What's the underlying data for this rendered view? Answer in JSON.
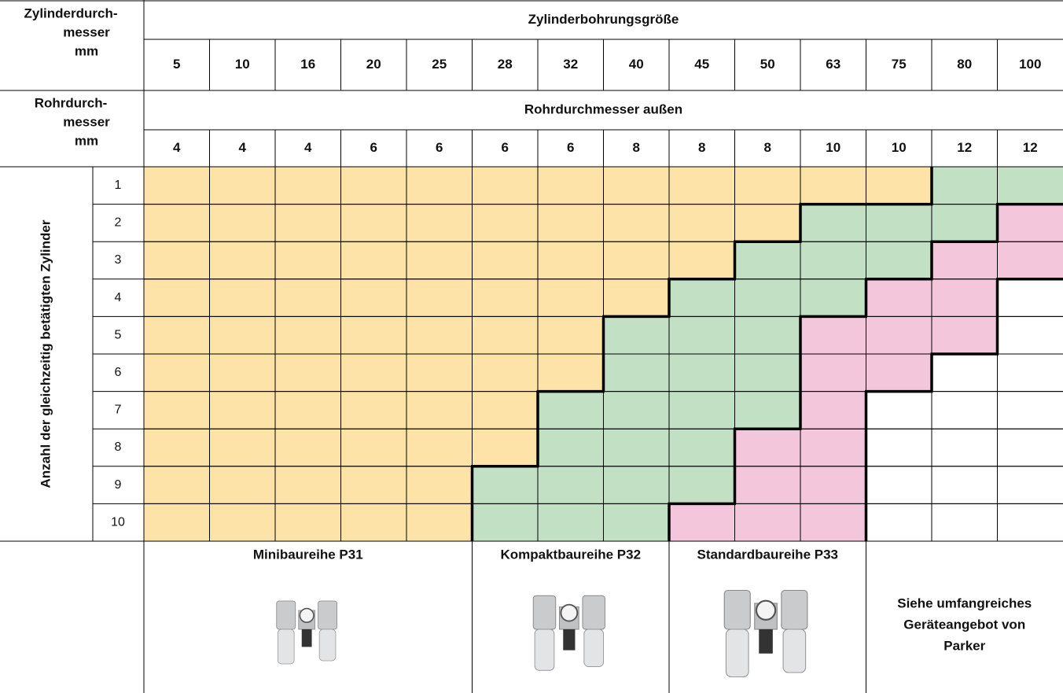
{
  "table": {
    "header1": {
      "label_lines": [
        "Zylinderdurch-",
        "messer",
        "mm"
      ],
      "title": "Zylinderbohrungsgröße",
      "values": [
        "5",
        "10",
        "16",
        "20",
        "25",
        "28",
        "32",
        "40",
        "45",
        "50",
        "63",
        "75",
        "80",
        "100"
      ]
    },
    "header2": {
      "label_lines": [
        "Rohrdurch-",
        "messer",
        "mm"
      ],
      "title": "Rohrdurchmesser außen",
      "values": [
        "4",
        "4",
        "4",
        "6",
        "6",
        "6",
        "6",
        "8",
        "8",
        "8",
        "10",
        "10",
        "12",
        "12"
      ]
    },
    "row_axis_label": "Anzahl der gleichzeitig betätigten Zylinder",
    "rows": [
      {
        "label": "1",
        "colors": [
          "#fde3a7",
          "#fde3a7",
          "#fde3a7",
          "#fde3a7",
          "#fde3a7",
          "#fde3a7",
          "#fde3a7",
          "#fde3a7",
          "#fde3a7",
          "#fde3a7",
          "#fde3a7",
          "#fde3a7",
          "#c2e0c3",
          "#c2e0c3"
        ]
      },
      {
        "label": "2",
        "colors": [
          "#fde3a7",
          "#fde3a7",
          "#fde3a7",
          "#fde3a7",
          "#fde3a7",
          "#fde3a7",
          "#fde3a7",
          "#fde3a7",
          "#fde3a7",
          "#fde3a7",
          "#c2e0c3",
          "#c2e0c3",
          "#c2e0c3",
          "#f4c6dc"
        ]
      },
      {
        "label": "3",
        "colors": [
          "#fde3a7",
          "#fde3a7",
          "#fde3a7",
          "#fde3a7",
          "#fde3a7",
          "#fde3a7",
          "#fde3a7",
          "#fde3a7",
          "#fde3a7",
          "#c2e0c3",
          "#c2e0c3",
          "#c2e0c3",
          "#f4c6dc",
          "#f4c6dc"
        ]
      },
      {
        "label": "4",
        "colors": [
          "#fde3a7",
          "#fde3a7",
          "#fde3a7",
          "#fde3a7",
          "#fde3a7",
          "#fde3a7",
          "#fde3a7",
          "#fde3a7",
          "#c2e0c3",
          "#c2e0c3",
          "#c2e0c3",
          "#f4c6dc",
          "#f4c6dc",
          "#ffffff"
        ]
      },
      {
        "label": "5",
        "colors": [
          "#fde3a7",
          "#fde3a7",
          "#fde3a7",
          "#fde3a7",
          "#fde3a7",
          "#fde3a7",
          "#fde3a7",
          "#c2e0c3",
          "#c2e0c3",
          "#c2e0c3",
          "#f4c6dc",
          "#f4c6dc",
          "#f4c6dc",
          "#ffffff"
        ]
      },
      {
        "label": "6",
        "colors": [
          "#fde3a7",
          "#fde3a7",
          "#fde3a7",
          "#fde3a7",
          "#fde3a7",
          "#fde3a7",
          "#fde3a7",
          "#c2e0c3",
          "#c2e0c3",
          "#c2e0c3",
          "#f4c6dc",
          "#f4c6dc",
          "#ffffff",
          "#ffffff"
        ]
      },
      {
        "label": "7",
        "colors": [
          "#fde3a7",
          "#fde3a7",
          "#fde3a7",
          "#fde3a7",
          "#fde3a7",
          "#fde3a7",
          "#c2e0c3",
          "#c2e0c3",
          "#c2e0c3",
          "#c2e0c3",
          "#f4c6dc",
          "#ffffff",
          "#ffffff",
          "#ffffff"
        ]
      },
      {
        "label": "8",
        "colors": [
          "#fde3a7",
          "#fde3a7",
          "#fde3a7",
          "#fde3a7",
          "#fde3a7",
          "#fde3a7",
          "#c2e0c3",
          "#c2e0c3",
          "#c2e0c3",
          "#f4c6dc",
          "#f4c6dc",
          "#ffffff",
          "#ffffff",
          "#ffffff"
        ]
      },
      {
        "label": "9",
        "colors": [
          "#fde3a7",
          "#fde3a7",
          "#fde3a7",
          "#fde3a7",
          "#fde3a7",
          "#c2e0c3",
          "#c2e0c3",
          "#c2e0c3",
          "#c2e0c3",
          "#f4c6dc",
          "#f4c6dc",
          "#ffffff",
          "#ffffff",
          "#ffffff"
        ]
      },
      {
        "label": "10",
        "colors": [
          "#fde3a7",
          "#fde3a7",
          "#fde3a7",
          "#fde3a7",
          "#fde3a7",
          "#c2e0c3",
          "#c2e0c3",
          "#c2e0c3",
          "#f4c6dc",
          "#f4c6dc",
          "#f4c6dc",
          "#ffffff",
          "#ffffff",
          "#ffffff"
        ]
      }
    ],
    "products": [
      {
        "label": "Minibaureihe P31",
        "color": "#fde3a7"
      },
      {
        "label": "Kompaktbaureihe P32",
        "color": "#c2e0c3"
      },
      {
        "label": "Standardbaureihe P33",
        "color": "#f4c6dc"
      },
      {
        "label_lines": [
          "Siehe umfangreiches",
          "Geräteangebot von",
          "Parker"
        ],
        "color": "#ffffff"
      }
    ]
  }
}
